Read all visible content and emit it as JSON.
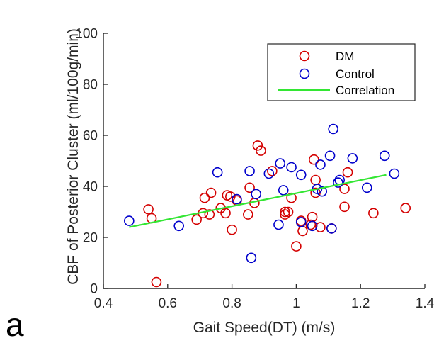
{
  "panel_label": "a",
  "colors": {
    "dm": "#d40000",
    "control": "#0000cc",
    "correlation": "#33e633",
    "axis": "#262626"
  },
  "chart_data": {
    "type": "scatter",
    "xlabel": "Gait Speed(DT) (m/s)",
    "ylabel": "CBF of Posterior Cluster (ml/100g/min)",
    "xlim": [
      0.4,
      1.4
    ],
    "ylim": [
      0,
      100
    ],
    "xticks": [
      "0.4",
      "0.6",
      "0.8",
      "1",
      "1.2",
      "1.4"
    ],
    "yticks": [
      "0",
      "20",
      "40",
      "60",
      "80",
      "100"
    ],
    "grid": false,
    "legend_position": "top-right",
    "series": [
      {
        "name": "DM",
        "marker": "open-circle",
        "points": [
          [
            0.54,
            31
          ],
          [
            0.55,
            27.5
          ],
          [
            0.565,
            2.5
          ],
          [
            0.69,
            27
          ],
          [
            0.71,
            29.5
          ],
          [
            0.715,
            35.5
          ],
          [
            0.73,
            29
          ],
          [
            0.735,
            37.5
          ],
          [
            0.765,
            31.5
          ],
          [
            0.78,
            29.5
          ],
          [
            0.785,
            36.5
          ],
          [
            0.795,
            36
          ],
          [
            0.8,
            23
          ],
          [
            0.815,
            34.5
          ],
          [
            0.85,
            29
          ],
          [
            0.855,
            39.5
          ],
          [
            0.87,
            33.5
          ],
          [
            0.88,
            56
          ],
          [
            0.89,
            54
          ],
          [
            0.925,
            46
          ],
          [
            0.965,
            29
          ],
          [
            0.965,
            30
          ],
          [
            0.975,
            30
          ],
          [
            0.985,
            35.5
          ],
          [
            1.0,
            16.5
          ],
          [
            1.015,
            26.5
          ],
          [
            1.02,
            22.5
          ],
          [
            1.045,
            25
          ],
          [
            1.05,
            28
          ],
          [
            1.055,
            50.5
          ],
          [
            1.06,
            37.5
          ],
          [
            1.06,
            42.5
          ],
          [
            1.075,
            24
          ],
          [
            1.11,
            23.5
          ],
          [
            1.15,
            32
          ],
          [
            1.15,
            39
          ],
          [
            1.16,
            45.5
          ],
          [
            1.24,
            29.5
          ],
          [
            1.34,
            31.5
          ]
        ]
      },
      {
        "name": "Control",
        "marker": "open-circle",
        "points": [
          [
            0.48,
            26.5
          ],
          [
            0.635,
            24.5
          ],
          [
            0.755,
            45.5
          ],
          [
            0.815,
            35
          ],
          [
            0.855,
            46
          ],
          [
            0.86,
            12
          ],
          [
            0.875,
            37
          ],
          [
            0.915,
            45
          ],
          [
            0.945,
            25
          ],
          [
            0.95,
            49
          ],
          [
            0.96,
            38.5
          ],
          [
            0.985,
            47.5
          ],
          [
            1.015,
            44.5
          ],
          [
            1.015,
            26
          ],
          [
            1.05,
            24.5
          ],
          [
            1.065,
            39
          ],
          [
            1.075,
            48.5
          ],
          [
            1.08,
            38
          ],
          [
            1.105,
            52
          ],
          [
            1.11,
            23.5
          ],
          [
            1.115,
            62.5
          ],
          [
            1.13,
            41.5
          ],
          [
            1.135,
            42.5
          ],
          [
            1.175,
            51
          ],
          [
            1.22,
            39.5
          ],
          [
            1.275,
            52
          ],
          [
            1.305,
            45
          ]
        ]
      },
      {
        "name": "Correlation",
        "type": "line",
        "points": [
          [
            0.48,
            24
          ],
          [
            1.28,
            44.5
          ]
        ]
      }
    ]
  }
}
